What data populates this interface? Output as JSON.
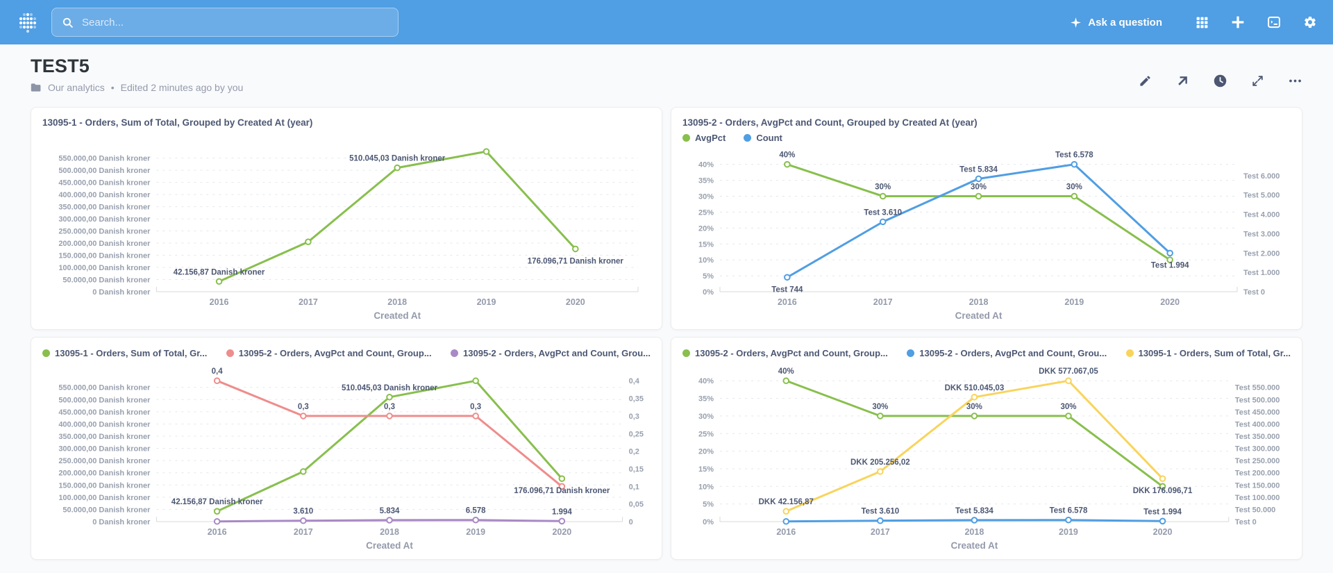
{
  "navbar": {
    "search_placeholder": "Search...",
    "ask_question_label": "Ask a question"
  },
  "header": {
    "title": "TEST5",
    "collection": "Our analytics",
    "separator": "•",
    "edited": "Edited 2 minutes ago by you"
  },
  "colors": {
    "brand": "#509EE3",
    "green": "#88BF4D",
    "blue": "#509EE3",
    "red": "#EF8C8C",
    "purple": "#A989C5",
    "yellow": "#F9D45C",
    "text_dark": "#2E353B",
    "text_medium": "#4C5773",
    "text_light": "#949AAB",
    "grid_line": "#E4E7EC",
    "axis_line": "#D9D9D9",
    "page_bg": "#F9FAFC"
  },
  "cards": [
    {
      "title": "13095-1 - Orders, Sum of Total, Grouped by Created At (year)",
      "chart_data": {
        "type": "line",
        "x": [
          "2016",
          "2017",
          "2018",
          "2019",
          "2020"
        ],
        "xlabel": "Created At",
        "axes": {
          "left": {
            "tick_labels": [
              "550.000,00 Danish kroner",
              "500.000,00 Danish kroner",
              "450.000,00 Danish kroner",
              "400.000,00 Danish kroner",
              "350.000,00 Danish kroner",
              "300.000,00 Danish kroner",
              "250.000,00 Danish kroner",
              "200.000,00 Danish kroner",
              "150.000,00 Danish kroner",
              "100.000,00 Danish kroner",
              "50.000,00 Danish kroner",
              "0 Danish kroner"
            ],
            "tick_values": [
              550000,
              500000,
              450000,
              400000,
              350000,
              300000,
              250000,
              200000,
              150000,
              100000,
              50000,
              0
            ]
          }
        },
        "series": [
          {
            "name": "Sum of Total",
            "color": "#88BF4D",
            "axis": "left",
            "values": [
              42156.87,
              205256.02,
              510045.03,
              577067.05,
              176096.71
            ],
            "labels": [
              "42.156,87 Danish kroner",
              null,
              "510.045,03 Danish kroner",
              null,
              "176.096,71 Danish kroner"
            ],
            "label_pos": [
              "a",
              null,
              "a",
              null,
              "b"
            ]
          }
        ]
      }
    },
    {
      "title": "13095-2 - Orders, AvgPct and Count, Grouped by Created At (year)",
      "legend": [
        {
          "label": "AvgPct",
          "color": "#88BF4D"
        },
        {
          "label": "Count",
          "color": "#509EE3"
        }
      ],
      "chart_data": {
        "type": "line",
        "x": [
          "2016",
          "2017",
          "2018",
          "2019",
          "2020"
        ],
        "xlabel": "Created At",
        "axes": {
          "left": {
            "tick_labels": [
              "40%",
              "35%",
              "30%",
              "25%",
              "20%",
              "15%",
              "10%",
              "5%",
              "0%"
            ],
            "tick_values": [
              40,
              35,
              30,
              25,
              20,
              15,
              10,
              5,
              0
            ]
          },
          "right": {
            "tick_labels": [
              "Test 6.000",
              "Test 5.000",
              "Test 4.000",
              "Test 3.000",
              "Test 2.000",
              "Test 1.000",
              "Test 0"
            ],
            "tick_values": [
              6000,
              5000,
              4000,
              3000,
              2000,
              1000,
              0
            ]
          }
        },
        "series": [
          {
            "name": "AvgPct",
            "color": "#88BF4D",
            "axis": "left",
            "values": [
              40,
              30,
              30,
              30,
              10
            ],
            "labels": [
              "40%",
              "30%",
              "30%",
              "30%",
              null
            ],
            "label_pos": [
              "a",
              "a",
              "a",
              "a",
              null
            ]
          },
          {
            "name": "Count",
            "color": "#509EE3",
            "axis": "right",
            "values": [
              744,
              3610,
              5834,
              6578,
              1994
            ],
            "labels": [
              "Test 744",
              "Test 3.610",
              "Test 5.834",
              "Test 6.578",
              "Test 1.994"
            ],
            "label_pos": [
              "b",
              "a",
              "a",
              "a",
              "b"
            ]
          }
        ]
      }
    },
    {
      "legend": [
        {
          "label": "13095-1 - Orders, Sum of Total, Gr...",
          "color": "#88BF4D"
        },
        {
          "label": "13095-2 - Orders, AvgPct and Count, Group...",
          "color": "#EF8C8C"
        },
        {
          "label": "13095-2 - Orders, AvgPct and Count, Grou...",
          "color": "#A989C5"
        }
      ],
      "chart_data": {
        "type": "line",
        "x": [
          "2016",
          "2017",
          "2018",
          "2019",
          "2020"
        ],
        "xlabel": "Created At",
        "axes": {
          "left": {
            "tick_labels": [
              "550.000,00 Danish kroner",
              "500.000,00 Danish kroner",
              "450.000,00 Danish kroner",
              "400.000,00 Danish kroner",
              "350.000,00 Danish kroner",
              "300.000,00 Danish kroner",
              "250.000,00 Danish kroner",
              "200.000,00 Danish kroner",
              "150.000,00 Danish kroner",
              "100.000,00 Danish kroner",
              "50.000,00 Danish kroner",
              "0 Danish kroner"
            ],
            "tick_values": [
              550000,
              500000,
              450000,
              400000,
              350000,
              300000,
              250000,
              200000,
              150000,
              100000,
              50000,
              0
            ]
          },
          "right": {
            "tick_labels": [
              "0,4",
              "0,35",
              "0,3",
              "0,25",
              "0,2",
              "0,15",
              "0,1",
              "0,05",
              "0"
            ],
            "tick_values": [
              0.4,
              0.35,
              0.3,
              0.25,
              0.2,
              0.15,
              0.1,
              0.05,
              0
            ]
          }
        },
        "series": [
          {
            "name": "Sum of Total",
            "color": "#88BF4D",
            "axis": "left",
            "values": [
              42156.87,
              205256.02,
              510045.03,
              577067.05,
              176096.71
            ],
            "labels": [
              "42.156,87 Danish kroner",
              null,
              "510.045,03 Danish kroner",
              null,
              "176.096,71 Danish kroner"
            ],
            "label_pos": [
              "a",
              null,
              "a",
              null,
              "b"
            ]
          },
          {
            "name": "AvgPct",
            "color": "#EF8C8C",
            "axis": "right",
            "values": [
              0.4,
              0.3,
              0.3,
              0.3,
              0.1
            ],
            "labels": [
              "0,4",
              "0,3",
              "0,3",
              "0,3",
              null
            ],
            "label_pos": [
              "a",
              "a",
              "a",
              "a",
              null
            ]
          },
          {
            "name": "Count",
            "color": "#A989C5",
            "axis": "left",
            "values": [
              744,
              3610,
              5834,
              6578,
              1994
            ],
            "labels": [
              null,
              "3.610",
              "5.834",
              "6.578",
              "1.994"
            ],
            "label_pos": [
              null,
              "a",
              "a",
              "a",
              "a"
            ]
          }
        ]
      }
    },
    {
      "legend": [
        {
          "label": "13095-2 - Orders, AvgPct and Count, Group...",
          "color": "#88BF4D"
        },
        {
          "label": "13095-2 - Orders, AvgPct and Count, Grou...",
          "color": "#509EE3"
        },
        {
          "label": "13095-1 - Orders, Sum of Total, Gr...",
          "color": "#F9D45C"
        }
      ],
      "chart_data": {
        "type": "line",
        "x": [
          "2016",
          "2017",
          "2018",
          "2019",
          "2020"
        ],
        "xlabel": "Created At",
        "axes": {
          "left": {
            "tick_labels": [
              "40%",
              "35%",
              "30%",
              "25%",
              "20%",
              "15%",
              "10%",
              "5%",
              "0%"
            ],
            "tick_values": [
              40,
              35,
              30,
              25,
              20,
              15,
              10,
              5,
              0
            ]
          },
          "right": {
            "tick_labels": [
              "Test 550.000",
              "Test 500.000",
              "Test 450.000",
              "Test 400.000",
              "Test 350.000",
              "Test 300.000",
              "Test 250.000",
              "Test 200.000",
              "Test 150.000",
              "Test 100.000",
              "Test 50.000",
              "Test 0"
            ],
            "tick_values": [
              550000,
              500000,
              450000,
              400000,
              350000,
              300000,
              250000,
              200000,
              150000,
              100000,
              50000,
              0
            ]
          }
        },
        "series": [
          {
            "name": "AvgPct",
            "color": "#88BF4D",
            "axis": "left",
            "values": [
              40,
              30,
              30,
              30,
              10
            ],
            "labels": [
              "40%",
              "30%",
              "30%",
              "30%",
              null
            ],
            "label_pos": [
              "a",
              "a",
              "a",
              "a",
              null
            ]
          },
          {
            "name": "Count",
            "color": "#509EE3",
            "axis": "right",
            "values": [
              744,
              3610,
              5834,
              6578,
              1994
            ],
            "labels": [
              null,
              "Test 3.610",
              "Test 5.834",
              "Test 6.578",
              "Test 1.994"
            ],
            "label_pos": [
              null,
              "a",
              "a",
              "a",
              "a"
            ]
          },
          {
            "name": "Sum of Total",
            "color": "#F9D45C",
            "axis": "right",
            "values": [
              42156.87,
              205256.02,
              510045.03,
              577067.05,
              176096.71
            ],
            "labels": [
              "DKK 42.156,87",
              "DKK 205.256,02",
              "DKK 510.045,03",
              "DKK 577.067,05",
              "DKK 176.096,71"
            ],
            "label_pos": [
              "a",
              "a",
              "a",
              "a",
              "b"
            ]
          }
        ]
      }
    }
  ]
}
